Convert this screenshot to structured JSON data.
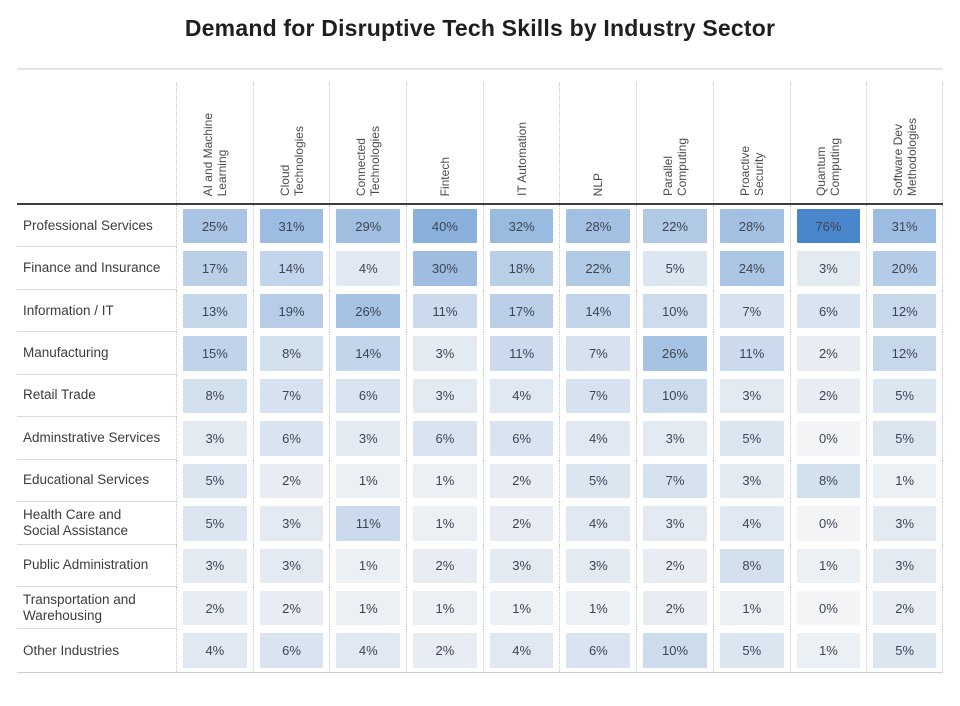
{
  "title": "Demand for Disruptive Tech Skills by Industry Sector",
  "chart_data": {
    "type": "heatmap",
    "title": "Demand for Disruptive Tech Skills by Industry Sector",
    "unit": "%",
    "columns": [
      "AI and Machine Learning",
      "Cloud Technologies",
      "Connected Technologies",
      "Fintech",
      "IT Automation",
      "NLP",
      "Parallel Computing",
      "Proactive Security",
      "Quantum Computing",
      "Software Dev Methodologies"
    ],
    "column_display": [
      "AI and Machine\nLearning",
      "Cloud\nTechnologies",
      "Connected\nTechnologies",
      "Fintech",
      "IT Automation",
      "NLP",
      "Parallel\nComputing",
      "Proactive\nSecurity",
      "Quantum\nComputing",
      "Software Dev\nMethodologies"
    ],
    "rows": [
      {
        "label": "Professional Services",
        "display": "Professional Services",
        "values": [
          25,
          31,
          29,
          40,
          32,
          28,
          22,
          28,
          76,
          31
        ]
      },
      {
        "label": "Finance and Insurance",
        "display": "Finance and Insurance",
        "values": [
          17,
          14,
          4,
          30,
          18,
          22,
          5,
          24,
          3,
          20
        ]
      },
      {
        "label": "Information / IT",
        "display": "Information / IT",
        "values": [
          13,
          19,
          26,
          11,
          17,
          14,
          10,
          7,
          6,
          12
        ]
      },
      {
        "label": "Manufacturing",
        "display": "Manufacturing",
        "values": [
          15,
          8,
          14,
          3,
          11,
          7,
          26,
          11,
          2,
          12
        ]
      },
      {
        "label": "Retail Trade",
        "display": "Retail Trade",
        "values": [
          8,
          7,
          6,
          3,
          4,
          7,
          10,
          3,
          2,
          5
        ]
      },
      {
        "label": "Adminstrative Services",
        "display": "Adminstrative Services",
        "values": [
          3,
          6,
          3,
          6,
          6,
          4,
          3,
          5,
          0,
          5
        ]
      },
      {
        "label": "Educational Services",
        "display": "Educational Services",
        "values": [
          5,
          2,
          1,
          1,
          2,
          5,
          7,
          3,
          8,
          1
        ]
      },
      {
        "label": "Health Care and Social Assistance",
        "display": "Health Care and\nSocial Assistance",
        "values": [
          5,
          3,
          11,
          1,
          2,
          4,
          3,
          4,
          0,
          3
        ]
      },
      {
        "label": "Public Administration",
        "display": "Public Administration",
        "values": [
          3,
          3,
          1,
          2,
          3,
          3,
          2,
          8,
          1,
          3
        ]
      },
      {
        "label": "Transportation and Warehousing",
        "display": "Transportation and\nWarehousing",
        "values": [
          2,
          2,
          1,
          1,
          1,
          1,
          2,
          1,
          0,
          2
        ]
      },
      {
        "label": "Other Industries",
        "display": "Other Industries",
        "values": [
          4,
          6,
          4,
          2,
          4,
          6,
          10,
          5,
          1,
          5
        ]
      }
    ],
    "color_scale": {
      "min_value": 0,
      "max_value": 76,
      "min_color": "#f2f4f6",
      "max_color": "#4a86cc",
      "exponent": 0.75
    },
    "legend": "none",
    "layout_hints": {
      "column_headers_rotated": true,
      "value_suffix": "%",
      "header_divider_color": "#3d3d3d",
      "grid_dotted_color": "#c6c6c6"
    }
  }
}
